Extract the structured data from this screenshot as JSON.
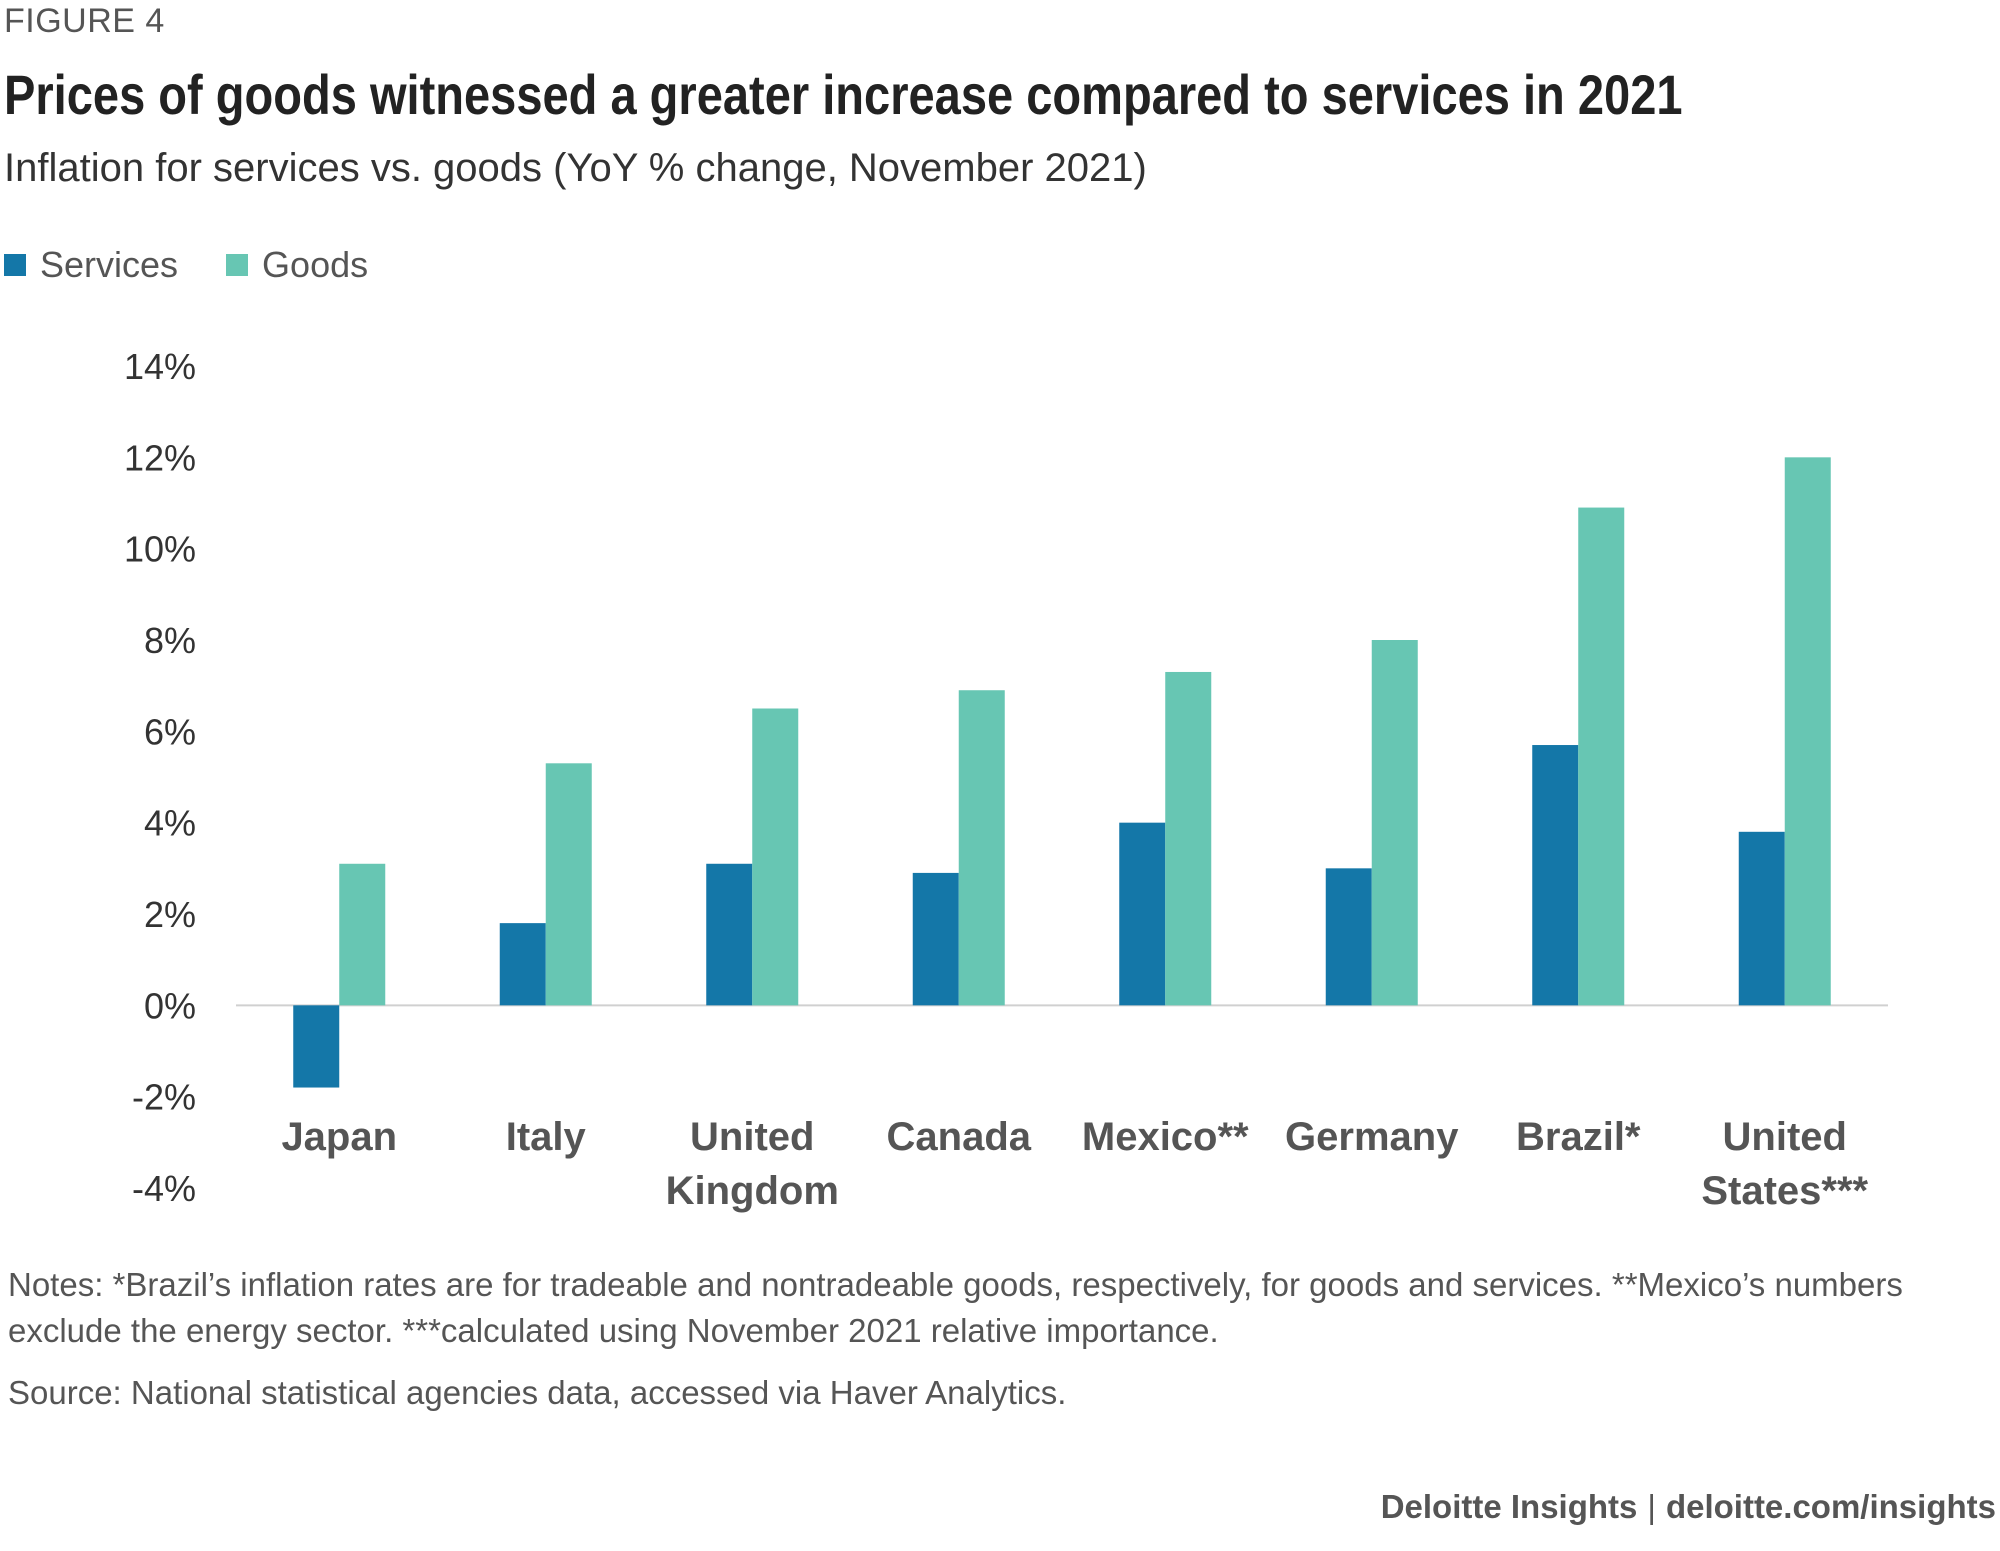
{
  "figure_label": "FIGURE 4",
  "title": "Prices of goods witnessed a greater increase compared to services in 2021",
  "subtitle": "Inflation for services vs. goods (YoY % change, November 2021)",
  "colors": {
    "services": "#1477a8",
    "goods": "#67c6b3",
    "axis": "#d0d0d0",
    "text": "#333333",
    "category_text": "#555555"
  },
  "chart_data": {
    "type": "bar",
    "categories": [
      [
        "Japan"
      ],
      [
        "Italy"
      ],
      [
        "United",
        "Kingdom"
      ],
      [
        "Canada"
      ],
      [
        "Mexico**"
      ],
      [
        "Germany"
      ],
      [
        "Brazil*"
      ],
      [
        "United",
        "States***"
      ]
    ],
    "series": [
      {
        "name": "Services",
        "values": [
          -1.8,
          1.8,
          3.1,
          2.9,
          4.0,
          3.0,
          5.7,
          3.8
        ]
      },
      {
        "name": "Goods",
        "values": [
          3.1,
          5.3,
          6.5,
          6.9,
          7.3,
          8.0,
          10.9,
          12.0
        ]
      }
    ],
    "y_ticks": [
      "14%",
      "12%",
      "10%",
      "8%",
      "6%",
      "4%",
      "2%",
      "0%",
      "-2%",
      "-4%"
    ],
    "ylim": [
      -4,
      14
    ],
    "legend_position": "top-left",
    "grid": false
  },
  "notes": "Notes: *Brazil’s inflation rates are for tradeable and nontradeable goods, respectively, for goods and services. **Mexico’s numbers exclude the energy sector. ***calculated using November 2021 relative importance.",
  "source": "Source: National statistical agencies data, accessed via Haver Analytics.",
  "footer": {
    "brand": "Deloitte Insights",
    "separator": "|",
    "url": "deloitte.com/insights"
  }
}
